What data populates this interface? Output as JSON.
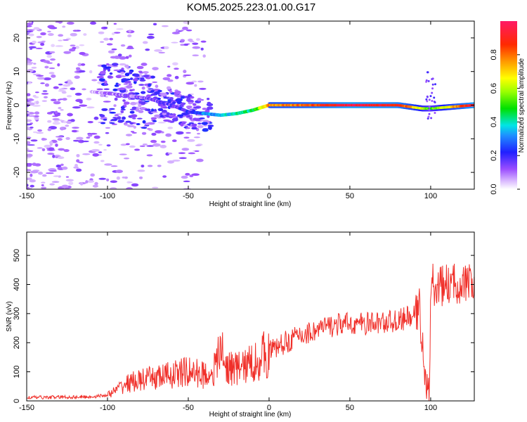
{
  "title": "KOM5.2025.223.01.00.G17",
  "colors": {
    "snr_line": "#f0302a",
    "axis": "#000000",
    "background": "#ffffff"
  },
  "chart_data": [
    {
      "type": "heatmap",
      "title": "KOM5.2025.223.01.00.G17",
      "xlabel": "Height of straight line (km)",
      "ylabel": "Frequency (Hz)",
      "xlim": [
        -150,
        127
      ],
      "ylim": [
        -25,
        25
      ],
      "xticks": [
        -150,
        -100,
        -50,
        0,
        50,
        100
      ],
      "yticks": [
        -20,
        -10,
        0,
        10,
        20
      ],
      "colorbar": {
        "label": "Normalized spectral amplitude",
        "range": [
          0,
          1
        ],
        "ticks": [
          0.0,
          0.2,
          0.4,
          0.6,
          0.8
        ]
      },
      "ridge": {
        "description_points_x": [
          -110,
          -90,
          -75,
          -60,
          -50,
          -40,
          -30,
          -20,
          -10,
          0,
          20,
          50,
          80,
          95,
          100,
          127
        ],
        "frequency_hz": [
          4,
          3,
          2,
          0,
          -2,
          -2.5,
          -3,
          -2.5,
          -1.5,
          0,
          0,
          0,
          0,
          -1,
          -1,
          0
        ],
        "amplitude": [
          0.05,
          0.1,
          0.12,
          0.15,
          0.2,
          0.3,
          0.35,
          0.4,
          0.45,
          0.75,
          0.8,
          0.95,
          0.9,
          0.6,
          0.5,
          0.95
        ]
      }
    },
    {
      "type": "line",
      "xlabel": "Height of straight line (km)",
      "ylabel": "SNR (v/v)",
      "xlim": [
        -150,
        127
      ],
      "ylim": [
        0,
        580
      ],
      "xticks": [
        -150,
        -100,
        -50,
        0,
        50,
        100
      ],
      "yticks": [
        0,
        100,
        200,
        300,
        400,
        500
      ],
      "series": [
        {
          "name": "SNR",
          "x": [
            -150,
            -140,
            -130,
            -120,
            -110,
            -100,
            -95,
            -90,
            -85,
            -80,
            -75,
            -70,
            -65,
            -60,
            -55,
            -50,
            -45,
            -40,
            -35,
            -31,
            -30,
            -28,
            -25,
            -20,
            -15,
            -10,
            -5,
            0,
            5,
            10,
            15,
            20,
            25,
            30,
            40,
            50,
            60,
            70,
            80,
            85,
            90,
            93,
            95,
            97,
            99,
            100,
            101,
            102,
            104,
            110,
            120,
            127
          ],
          "y": [
            12,
            12,
            13,
            13,
            14,
            20,
            35,
            55,
            65,
            70,
            75,
            80,
            85,
            90,
            95,
            100,
            95,
            90,
            95,
            150,
            210,
            120,
            115,
            110,
            120,
            130,
            150,
            170,
            185,
            200,
            215,
            225,
            235,
            245,
            260,
            265,
            265,
            270,
            275,
            285,
            290,
            320,
            200,
            50,
            20,
            320,
            420,
            380,
            390,
            400,
            405,
            400
          ]
        }
      ]
    }
  ]
}
